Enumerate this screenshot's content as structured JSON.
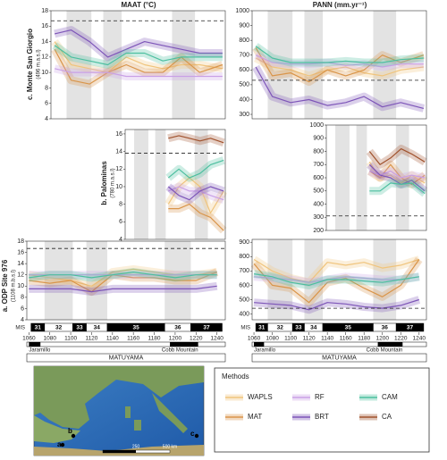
{
  "columns": [
    "MAAT (°C)",
    "PANN (mm.yr⁻¹)"
  ],
  "sites": [
    {
      "name": "c. Monte San Giorgio",
      "elevation": "(496 m.a.s.l)"
    },
    {
      "name": "b. Palominas",
      "elevation": "(780 m.a.s.l)"
    },
    {
      "name": "a. ODP Site 976",
      "elevation": "(1108 m.b.s.l)"
    }
  ],
  "legend": {
    "title": "Methods"
  },
  "map": {
    "sites": [
      "a",
      "b",
      "c"
    ],
    "scale": [
      "250",
      "500 km"
    ]
  },
  "chart_data": [
    {
      "type": "line",
      "x": [
        1062,
        1080,
        1100,
        1120,
        1140,
        1160,
        1180,
        1200,
        1220,
        1245
      ],
      "xlim": [
        1058,
        1248
      ],
      "ylim": [
        4,
        18
      ],
      "yticks": [
        4,
        6,
        8,
        10,
        12,
        14,
        16,
        18
      ],
      "reference": 16.7,
      "series": [
        {
          "name": "WAPLS",
          "color": "#f0c47c",
          "values": [
            14,
            11,
            10.5,
            10,
            12,
            11,
            10.5,
            11,
            11,
            10.5
          ]
        },
        {
          "name": "MAT",
          "color": "#d9954a",
          "values": [
            13,
            9,
            8.5,
            10,
            11,
            10,
            10,
            12,
            10,
            11
          ]
        },
        {
          "name": "RF",
          "color": "#c9a0e6",
          "values": [
            10.5,
            10,
            10,
            10,
            9.5,
            9.5,
            9.5,
            9.5,
            9.5,
            9.5
          ]
        },
        {
          "name": "BRT",
          "color": "#7d55b8",
          "values": [
            15,
            15.5,
            14,
            12,
            13,
            14,
            13.5,
            13,
            12.5,
            12.5
          ]
        },
        {
          "name": "CAM",
          "color": "#4cbf9f",
          "values": [
            13.5,
            12,
            11.5,
            11,
            12.5,
            12.5,
            11.5,
            12,
            12,
            12
          ]
        }
      ]
    },
    {
      "type": "line",
      "x": [
        1062,
        1080,
        1100,
        1120,
        1140,
        1160,
        1180,
        1200,
        1220,
        1245
      ],
      "xlim": [
        1058,
        1248
      ],
      "ylim": [
        270,
        1000
      ],
      "yticks": [
        300,
        400,
        500,
        600,
        700,
        800,
        900,
        1000
      ],
      "reference": 530,
      "series": [
        {
          "name": "WAPLS",
          "color": "#f0c47c",
          "values": [
            680,
            620,
            600,
            560,
            600,
            620,
            580,
            560,
            600,
            620
          ]
        },
        {
          "name": "MAT",
          "color": "#d9954a",
          "values": [
            750,
            560,
            580,
            520,
            600,
            560,
            600,
            700,
            650,
            700
          ]
        },
        {
          "name": "RF",
          "color": "#c9a0e6",
          "values": [
            700,
            650,
            640,
            640,
            650,
            630,
            640,
            620,
            640,
            640
          ]
        },
        {
          "name": "BRT",
          "color": "#7d55b8",
          "values": [
            620,
            420,
            380,
            400,
            360,
            380,
            420,
            350,
            380,
            340
          ]
        },
        {
          "name": "CAM",
          "color": "#4cbf9f",
          "values": [
            760,
            680,
            650,
            650,
            650,
            660,
            650,
            650,
            670,
            680
          ]
        }
      ]
    },
    {
      "type": "line",
      "x": [
        1140,
        1160,
        1180,
        1200,
        1220,
        1245
      ],
      "xlim": [
        1058,
        1248
      ],
      "ylim": [
        4,
        16.5
      ],
      "yticks": [
        4,
        6,
        8,
        10,
        12,
        14,
        16
      ],
      "reference": 13.8,
      "series": [
        {
          "name": "WAPLS",
          "color": "#f0c47c",
          "values": [
            8,
            10,
            11,
            10,
            7,
            9.5
          ]
        },
        {
          "name": "MAT",
          "color": "#d9954a",
          "values": [
            7.5,
            7.5,
            8,
            7,
            6.5,
            5
          ]
        },
        {
          "name": "RF",
          "color": "#c9a0e6",
          "values": [
            9.5,
            10,
            9.5,
            9.5,
            9,
            8.5
          ]
        },
        {
          "name": "BRT",
          "color": "#7d55b8",
          "values": [
            10,
            9,
            8.5,
            9.5,
            10,
            9.5
          ]
        },
        {
          "name": "CAM",
          "color": "#4cbf9f",
          "values": [
            11,
            12,
            11,
            11.5,
            12.5,
            13
          ]
        },
        {
          "name": "CA",
          "color": "#a0522d",
          "values": [
            15.5,
            15.8,
            15.5,
            15.2,
            15.5,
            15
          ]
        }
      ]
    },
    {
      "type": "line",
      "x": [
        1140,
        1160,
        1180,
        1200,
        1220,
        1245
      ],
      "xlim": [
        1058,
        1248
      ],
      "ylim": [
        200,
        1000
      ],
      "yticks": [
        200,
        300,
        400,
        500,
        600,
        700,
        800,
        900,
        1000
      ],
      "reference": 310,
      "series": [
        {
          "name": "WAPLS",
          "color": "#f0c47c",
          "values": [
            720,
            600,
            620,
            560,
            620,
            560
          ]
        },
        {
          "name": "MAT",
          "color": "#d9954a",
          "values": [
            650,
            600,
            700,
            600,
            550,
            620
          ]
        },
        {
          "name": "RF",
          "color": "#c9a0e6",
          "values": [
            650,
            620,
            650,
            600,
            620,
            600
          ]
        },
        {
          "name": "BRT",
          "color": "#7d55b8",
          "values": [
            700,
            620,
            600,
            550,
            580,
            500
          ]
        },
        {
          "name": "CAM",
          "color": "#4cbf9f",
          "values": [
            500,
            500,
            560,
            550,
            560,
            480
          ]
        },
        {
          "name": "CA",
          "color": "#a0522d",
          "values": [
            800,
            700,
            750,
            820,
            780,
            720
          ]
        }
      ]
    },
    {
      "type": "line",
      "x": [
        1060,
        1080,
        1100,
        1120,
        1140,
        1160,
        1180,
        1200,
        1220,
        1240
      ],
      "xlim": [
        1058,
        1248
      ],
      "xticks": [
        1060,
        1080,
        1100,
        1120,
        1140,
        1160,
        1180,
        1200,
        1220,
        1240
      ],
      "ylim": [
        4,
        18
      ],
      "yticks": [
        4,
        6,
        8,
        10,
        12,
        14,
        16,
        18
      ],
      "reference": 16.7,
      "series": [
        {
          "name": "WAPLS",
          "color": "#f0c47c",
          "values": [
            12,
            11.5,
            11,
            10,
            12.5,
            13,
            12.5,
            12,
            12,
            12.5
          ]
        },
        {
          "name": "MAT",
          "color": "#d9954a",
          "values": [
            11,
            10.5,
            11,
            9,
            12,
            11.5,
            11.5,
            11,
            11,
            12.5
          ]
        },
        {
          "name": "RF",
          "color": "#c9a0e6",
          "values": [
            12,
            12,
            12,
            12,
            12,
            12,
            12,
            12,
            12,
            12
          ]
        },
        {
          "name": "BRT",
          "color": "#7d55b8",
          "values": [
            9.5,
            9.5,
            9.5,
            9,
            9.5,
            9.5,
            9.5,
            9.5,
            9.5,
            10
          ]
        },
        {
          "name": "CAM",
          "color": "#4cbf9f",
          "values": [
            11.5,
            12,
            12,
            11.5,
            12,
            12.5,
            12,
            11.5,
            12,
            12
          ]
        }
      ],
      "mis_label": "MIS",
      "stages": [
        {
          "label": "31",
          "start": 1062,
          "end": 1075
        },
        {
          "label": "32",
          "start": 1075,
          "end": 1102
        },
        {
          "label": "33",
          "start": 1102,
          "end": 1115
        },
        {
          "label": "34",
          "start": 1115,
          "end": 1135
        },
        {
          "label": "35",
          "start": 1135,
          "end": 1190
        },
        {
          "label": "36",
          "start": 1190,
          "end": 1215
        },
        {
          "label": "37",
          "start": 1215,
          "end": 1245
        }
      ],
      "normal_polarity": [
        {
          "label": "Jaramillo",
          "start": 1060,
          "end": 1071
        },
        {
          "label": "Cobb Mountain",
          "start": 1195,
          "end": 1222
        }
      ],
      "chron": "MATUYAMA"
    },
    {
      "type": "line",
      "x": [
        1060,
        1080,
        1100,
        1120,
        1140,
        1160,
        1180,
        1200,
        1220,
        1240
      ],
      "xlim": [
        1058,
        1248
      ],
      "xticks": [
        1060,
        1080,
        1100,
        1120,
        1140,
        1160,
        1180,
        1200,
        1220,
        1240
      ],
      "ylim": [
        360,
        920
      ],
      "yticks": [
        400,
        500,
        600,
        700,
        800,
        900
      ],
      "reference": 440,
      "series": [
        {
          "name": "WAPLS",
          "color": "#f0c47c",
          "values": [
            780,
            700,
            650,
            620,
            760,
            740,
            760,
            720,
            740,
            780
          ]
        },
        {
          "name": "MAT",
          "color": "#d9954a",
          "values": [
            750,
            600,
            580,
            480,
            620,
            650,
            580,
            520,
            600,
            780
          ]
        },
        {
          "name": "RF",
          "color": "#c9a0e6",
          "values": [
            660,
            650,
            640,
            620,
            640,
            660,
            650,
            640,
            640,
            660
          ]
        },
        {
          "name": "BRT",
          "color": "#7d55b8",
          "values": [
            480,
            470,
            460,
            430,
            480,
            470,
            450,
            440,
            460,
            500
          ]
        },
        {
          "name": "CAM",
          "color": "#4cbf9f",
          "values": [
            680,
            660,
            620,
            600,
            640,
            640,
            630,
            620,
            640,
            660
          ]
        }
      ],
      "mis_label": "MIS",
      "stages": [
        {
          "label": "31",
          "start": 1062,
          "end": 1075
        },
        {
          "label": "32",
          "start": 1075,
          "end": 1102
        },
        {
          "label": "33",
          "start": 1102,
          "end": 1115
        },
        {
          "label": "34",
          "start": 1115,
          "end": 1135
        },
        {
          "label": "35",
          "start": 1135,
          "end": 1190
        },
        {
          "label": "36",
          "start": 1190,
          "end": 1215
        },
        {
          "label": "37",
          "start": 1215,
          "end": 1245
        }
      ],
      "normal_polarity": [
        {
          "label": "Jaramillo",
          "start": 1060,
          "end": 1071
        },
        {
          "label": "Cobb Mountain",
          "start": 1195,
          "end": 1222
        }
      ],
      "chron": "MATUYAMA"
    }
  ]
}
